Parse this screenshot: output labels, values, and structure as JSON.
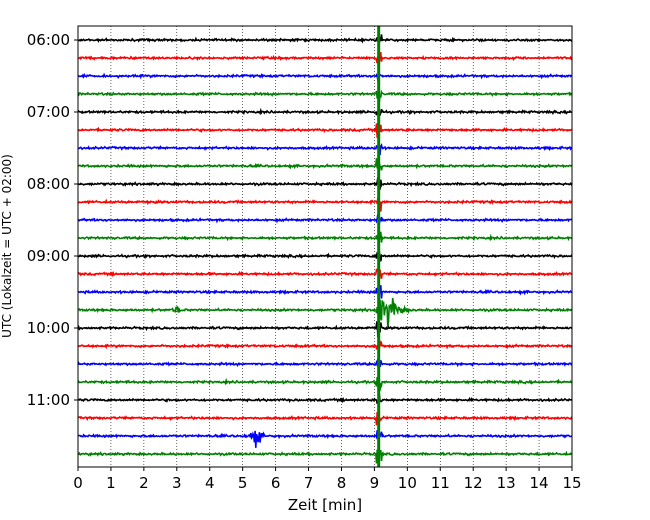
{
  "chart_data": {
    "type": "line",
    "title": "",
    "xlabel": "Zeit  [min]",
    "ylabel": "UTC (Lokalzeit = UTC + 02:00)",
    "xlim": [
      0,
      15
    ],
    "x_ticks": [
      0,
      1,
      2,
      3,
      4,
      5,
      6,
      7,
      8,
      9,
      10,
      11,
      12,
      13,
      14,
      15
    ],
    "x_grid": "dotted vertical lines at each minute",
    "y_axis": "time of day, one trace per 15 minutes, 06:00 at top",
    "y_tick_labels": [
      "06:00",
      "07:00",
      "08:00",
      "09:00",
      "10:00",
      "11:00"
    ],
    "trace_start_times": [
      "06:00",
      "06:15",
      "06:30",
      "06:45",
      "07:00",
      "07:15",
      "07:30",
      "07:45",
      "08:00",
      "08:15",
      "08:30",
      "08:45",
      "09:00",
      "09:15",
      "09:30",
      "09:45",
      "10:00",
      "10:15",
      "10:30",
      "10:45",
      "11:00",
      "11:15",
      "11:30",
      "11:45"
    ],
    "trace_colors": [
      "#000000",
      "#ff0000",
      "#0000ff",
      "#008000"
    ],
    "events": [
      {
        "description": "strong earthquake signal on all traces",
        "minute": 9.1
      },
      {
        "description": "local burst",
        "trace_time": "11:30",
        "minute": 5.4,
        "amplitude": "medium"
      },
      {
        "description": "small burst",
        "trace_time": "09:45",
        "minute": 3.0,
        "amplitude": "small"
      },
      {
        "description": "seismic coda",
        "trace_time": "09:45",
        "minute": 9.5,
        "amplitude": "large"
      }
    ]
  }
}
